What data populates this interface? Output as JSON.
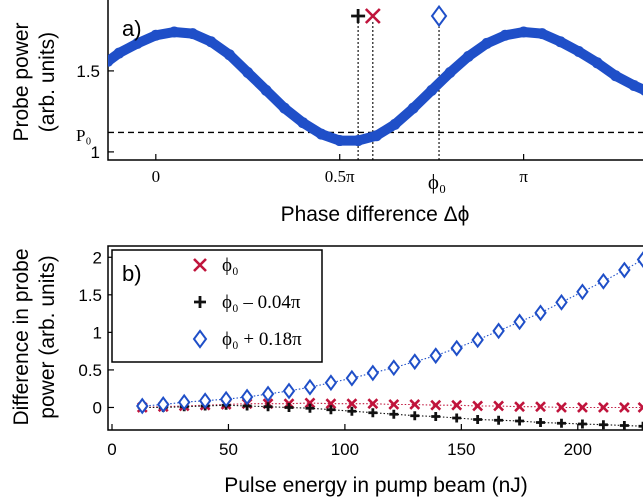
{
  "chart_data": [
    {
      "type": "scatter",
      "panel_label": "a)",
      "xlabel": "Phase difference Δϕ",
      "ylabel_line1": "Probe power",
      "ylabel_line2": "(arb. units)",
      "xlim": [
        -0.13,
        1.33
      ],
      "ylim": [
        0.95,
        1.95
      ],
      "xunit": "π",
      "x_ticks": [
        {
          "value": 0,
          "label": "0"
        },
        {
          "value": 0.5,
          "label": "0.5π"
        },
        {
          "value": 1.0,
          "label": "π"
        }
      ],
      "y_ticks": [
        {
          "value": 1,
          "label": "1"
        },
        {
          "value": 1.5,
          "label": "1.5"
        }
      ],
      "reference_line": {
        "label": "P₀",
        "y": 1.12
      },
      "markers": [
        {
          "symbol": "+",
          "x": 0.55,
          "color": "#111111"
        },
        {
          "symbol": "×",
          "x": 0.59,
          "color": "#c0143c"
        },
        {
          "symbol": "◇",
          "x": 0.77,
          "color": "#1f4fc8"
        }
      ],
      "phi0_label": "ϕ₀",
      "series": [
        {
          "color": "#1f4fc8",
          "x": [
            -0.13,
            -0.1,
            -0.05,
            0.0,
            0.05,
            0.1,
            0.15,
            0.2,
            0.25,
            0.3,
            0.35,
            0.4,
            0.45,
            0.5,
            0.55,
            0.6,
            0.65,
            0.7,
            0.75,
            0.8,
            0.85,
            0.9,
            0.95,
            1.0,
            1.05,
            1.1,
            1.15,
            1.2,
            1.25,
            1.3,
            1.33
          ],
          "y": [
            1.56,
            1.61,
            1.67,
            1.72,
            1.74,
            1.73,
            1.68,
            1.6,
            1.49,
            1.38,
            1.27,
            1.18,
            1.11,
            1.07,
            1.07,
            1.1,
            1.17,
            1.27,
            1.38,
            1.49,
            1.59,
            1.67,
            1.72,
            1.74,
            1.73,
            1.68,
            1.62,
            1.55,
            1.47,
            1.41,
            1.38
          ]
        }
      ]
    },
    {
      "type": "scatter",
      "panel_label": "b)",
      "xlabel": "Pulse energy in pump beam (nJ)",
      "ylabel_line1": "Difference in probe",
      "ylabel_line2": "power (arb. units)",
      "xlim": [
        0,
        228
      ],
      "ylim": [
        -0.3,
        2.15
      ],
      "x_ticks": [
        {
          "value": 0,
          "label": "0"
        },
        {
          "value": 50,
          "label": "50"
        },
        {
          "value": 100,
          "label": "100"
        },
        {
          "value": 150,
          "label": "150"
        },
        {
          "value": 200,
          "label": "200"
        }
      ],
      "y_ticks": [
        {
          "value": 0,
          "label": "0"
        },
        {
          "value": 0.5,
          "label": "0.5"
        },
        {
          "value": 1,
          "label": "1"
        },
        {
          "value": 1.5,
          "label": "1.5"
        },
        {
          "value": 2,
          "label": "2"
        }
      ],
      "legend": {
        "position": "top-left"
      },
      "series": [
        {
          "name": "ϕ₀",
          "marker": "x",
          "color": "#c0143c",
          "x": [
            13,
            22,
            31,
            40,
            49,
            58,
            67,
            76,
            85,
            94,
            103,
            112,
            121,
            130,
            139,
            148,
            157,
            166,
            175,
            184,
            193,
            202,
            211,
            220,
            228
          ],
          "y": [
            0.0,
            0.01,
            0.02,
            0.03,
            0.04,
            0.05,
            0.05,
            0.05,
            0.06,
            0.05,
            0.05,
            0.05,
            0.04,
            0.04,
            0.03,
            0.03,
            0.02,
            0.02,
            0.01,
            0.01,
            0.0,
            0.0,
            0.0,
            0.0,
            0.0
          ]
        },
        {
          "name": "ϕ₀ – 0.04π",
          "marker": "+",
          "color": "#111111",
          "x": [
            13,
            22,
            31,
            40,
            49,
            58,
            67,
            76,
            85,
            94,
            103,
            112,
            121,
            130,
            139,
            148,
            157,
            166,
            175,
            184,
            193,
            202,
            211,
            220,
            228
          ],
          "y": [
            0.0,
            0.0,
            0.01,
            0.02,
            0.03,
            0.02,
            0.01,
            0.0,
            -0.01,
            -0.03,
            -0.05,
            -0.07,
            -0.09,
            -0.11,
            -0.12,
            -0.14,
            -0.16,
            -0.17,
            -0.18,
            -0.2,
            -0.21,
            -0.22,
            -0.23,
            -0.24,
            -0.25
          ]
        },
        {
          "name": "ϕ₀ + 0.18π",
          "marker": "diamond",
          "color": "#1f4fc8",
          "x": [
            13,
            22,
            31,
            40,
            49,
            58,
            67,
            76,
            85,
            94,
            103,
            112,
            121,
            130,
            139,
            148,
            157,
            166,
            175,
            184,
            193,
            202,
            211,
            220,
            228
          ],
          "y": [
            0.02,
            0.04,
            0.07,
            0.09,
            0.11,
            0.14,
            0.18,
            0.22,
            0.27,
            0.33,
            0.39,
            0.46,
            0.53,
            0.61,
            0.69,
            0.79,
            0.9,
            1.02,
            1.14,
            1.26,
            1.4,
            1.54,
            1.68,
            1.83,
            1.97
          ]
        }
      ]
    }
  ]
}
